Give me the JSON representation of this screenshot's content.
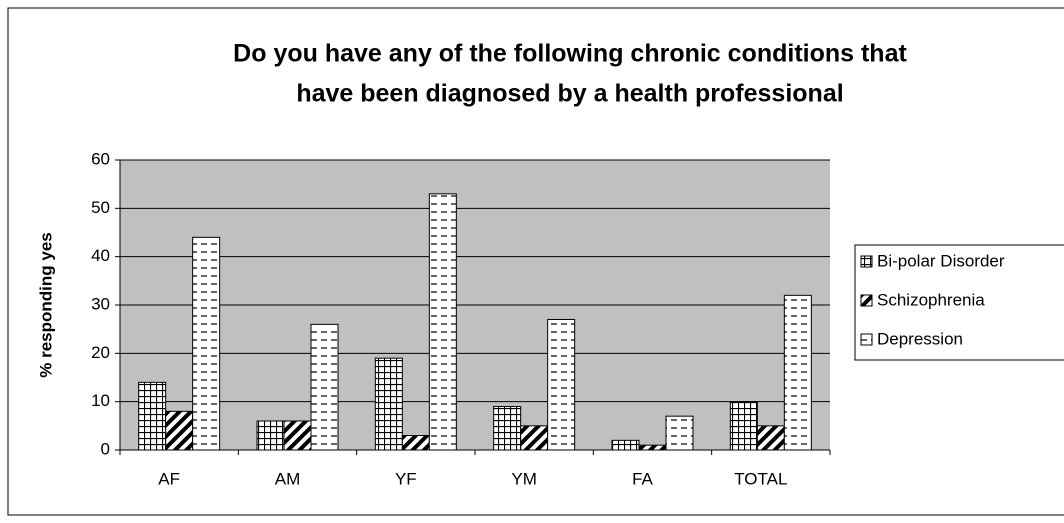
{
  "chart_data": {
    "type": "bar",
    "title": [
      "Do you have any of the following chronic conditions that",
      "have been diagnosed by a health professional"
    ],
    "y_label": "% responding yes",
    "categories": [
      "AF",
      "AM",
      "YF",
      "YM",
      "FA",
      "TOTAL"
    ],
    "series": [
      {
        "name": "Bi-polar Disorder",
        "color": "#000000",
        "pattern": "grid",
        "values": [
          14,
          6,
          19,
          9,
          2,
          10
        ]
      },
      {
        "name": "Schizophrenia",
        "color": "#000000",
        "pattern": "diagonal",
        "values": [
          8,
          6,
          3,
          5,
          1,
          5
        ]
      },
      {
        "name": "Depression",
        "color": "#000000",
        "pattern": "dashes",
        "values": [
          44,
          26,
          53,
          27,
          7,
          32
        ]
      }
    ],
    "ylim": [
      0,
      60
    ],
    "yticks": [
      0,
      10,
      20,
      30,
      40,
      50,
      60
    ],
    "grid": true,
    "legend": "right"
  }
}
